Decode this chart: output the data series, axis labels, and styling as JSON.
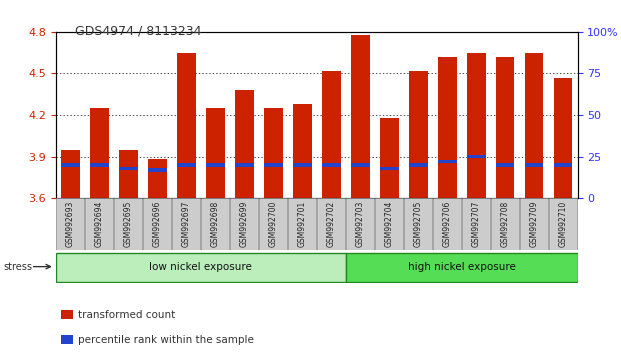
{
  "title": "GDS4974 / 8113234",
  "samples": [
    "GSM992693",
    "GSM992694",
    "GSM992695",
    "GSM992696",
    "GSM992697",
    "GSM992698",
    "GSM992699",
    "GSM992700",
    "GSM992701",
    "GSM992702",
    "GSM992703",
    "GSM992704",
    "GSM992705",
    "GSM992706",
    "GSM992707",
    "GSM992708",
    "GSM992709",
    "GSM992710"
  ],
  "transformed_count": [
    3.95,
    4.25,
    3.95,
    3.88,
    4.65,
    4.25,
    4.38,
    4.25,
    4.28,
    4.52,
    4.78,
    4.18,
    4.52,
    4.62,
    4.65,
    4.62,
    4.65,
    4.47
  ],
  "percentile_rank": [
    20,
    20,
    18,
    17,
    20,
    20,
    20,
    20,
    20,
    20,
    20,
    18,
    20,
    22,
    25,
    20,
    20,
    20
  ],
  "baseline": 3.6,
  "ylim_left": [
    3.6,
    4.8
  ],
  "ylim_right": [
    0,
    100
  ],
  "yticks_left": [
    3.6,
    3.9,
    4.2,
    4.5,
    4.8
  ],
  "yticks_right": [
    0,
    25,
    50,
    75,
    100
  ],
  "bar_color": "#cc2200",
  "blue_color": "#2244cc",
  "low_count": 10,
  "group_labels": [
    "low nickel exposure",
    "high nickel exposure"
  ],
  "group_colors": [
    "#bbeebb",
    "#55dd55"
  ],
  "group_border_color": "#228822",
  "stress_label": "stress",
  "legend_items": [
    {
      "label": "transformed count",
      "color": "#cc2200"
    },
    {
      "label": "percentile rank within the sample",
      "color": "#2244cc"
    }
  ],
  "grid_color": "#000000",
  "background_color": "#ffffff",
  "plot_bg_color": "#ffffff",
  "tick_label_color_left": "#cc2200",
  "tick_label_color_right": "#3333ff",
  "title_color": "#333333",
  "xtick_bg_color": "#cccccc"
}
